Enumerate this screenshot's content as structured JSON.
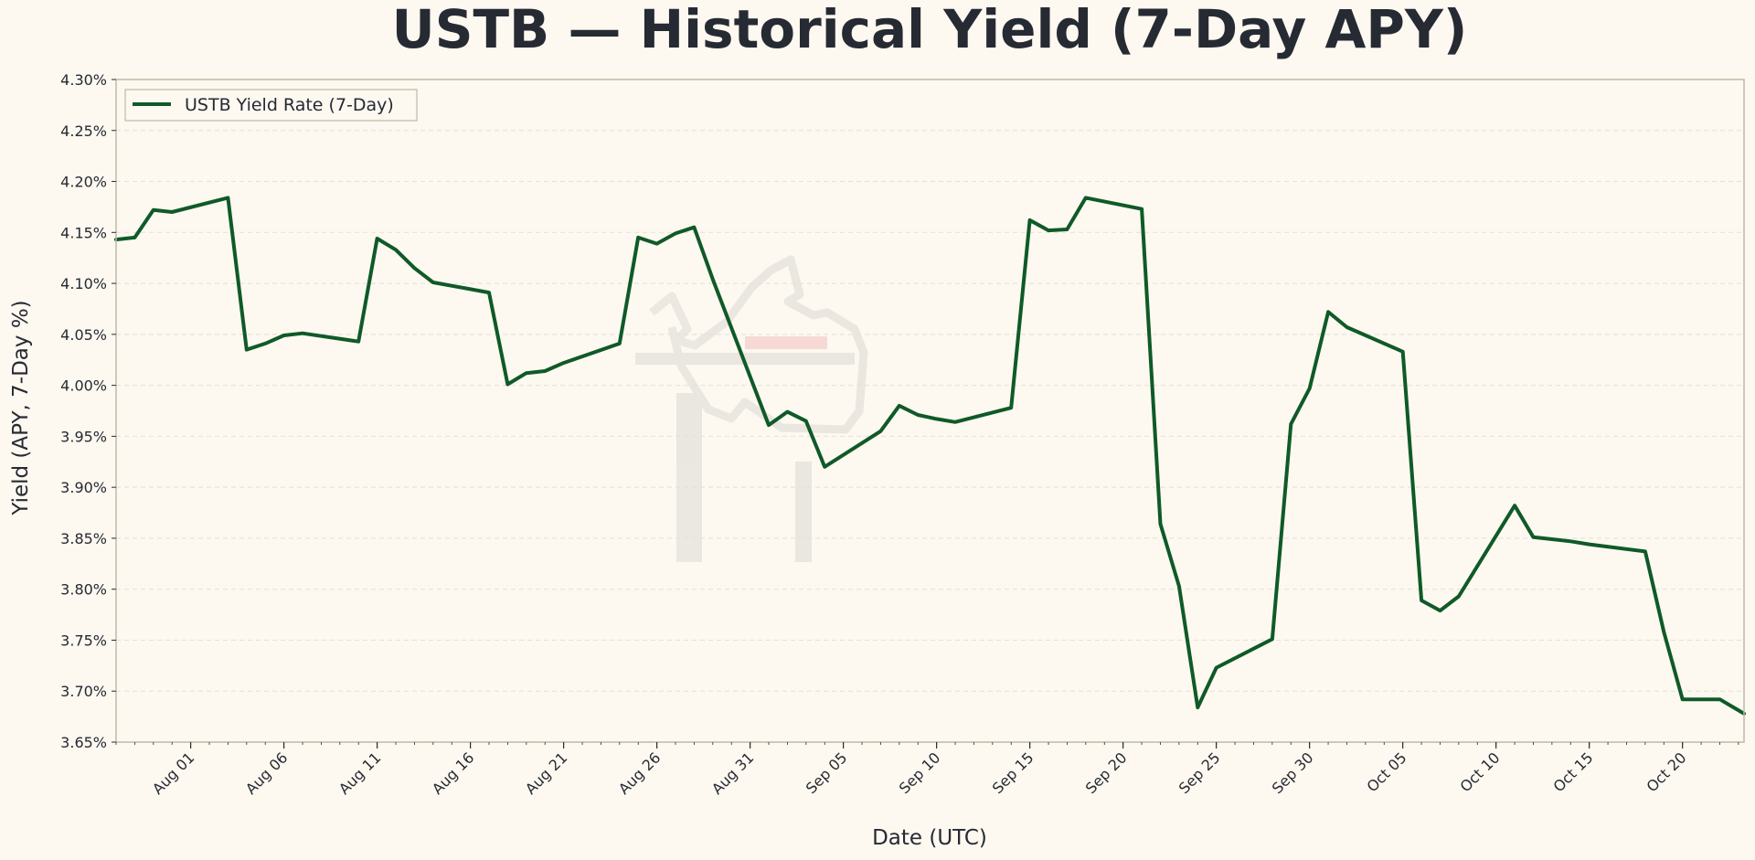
{
  "colors": {
    "background": "#fdf8f0",
    "plot_background": "#fdf8f0",
    "line": "#0f5a28",
    "grid": "#e6e0d6",
    "frame": "#b9bda4",
    "text": "#262a33",
    "watermark": "#e9e5df",
    "watermark_accent": "#f6d6d2"
  },
  "chart_data": {
    "type": "line",
    "title": "USTB — Historical Yield (7-Day APY)",
    "xlabel": "Date (UTC)",
    "ylabel": "Yield (APY, 7-Day %)",
    "ylim": [
      3.65,
      4.3
    ],
    "yticks": [
      3.65,
      3.7,
      3.75,
      3.8,
      3.85,
      3.9,
      3.95,
      4.0,
      4.05,
      4.1,
      4.15,
      4.2,
      4.25,
      4.3
    ],
    "ytick_labels": [
      "3.65%",
      "3.70%",
      "3.75%",
      "3.80%",
      "3.85%",
      "3.90%",
      "3.95%",
      "4.00%",
      "4.05%",
      "4.10%",
      "4.15%",
      "4.20%",
      "4.25%",
      "4.30%"
    ],
    "xlim_day_offset": [
      -4,
      83.3
    ],
    "x_reference": "Aug 01 = day 0",
    "xticks_day_offset": [
      0,
      5,
      10,
      15,
      20,
      25,
      30,
      35,
      40,
      45,
      50,
      55,
      60,
      65,
      70,
      75,
      80
    ],
    "xtick_labels": [
      "Aug 01",
      "Aug 06",
      "Aug 11",
      "Aug 16",
      "Aug 21",
      "Aug 26",
      "Aug 31",
      "Sep 05",
      "Sep 10",
      "Sep 15",
      "Sep 20",
      "Sep 25",
      "Sep 30",
      "Oct 05",
      "Oct 10",
      "Oct 15",
      "Oct 20"
    ],
    "grid": true,
    "legend_position": "top-left",
    "series": [
      {
        "name": "USTB Yield Rate (7-Day)",
        "x_day_offset": [
          -4,
          -3,
          -2,
          -1,
          2,
          3,
          4,
          5,
          6,
          9,
          10,
          11,
          12,
          13,
          16,
          17,
          18,
          19,
          20,
          23,
          24,
          25,
          26,
          27,
          28,
          31,
          32,
          33,
          34,
          37,
          38,
          39,
          40,
          41,
          44,
          45,
          46,
          47,
          48,
          51,
          52,
          53,
          54,
          55,
          58,
          59,
          60,
          61,
          62,
          65,
          66,
          67,
          68,
          71,
          72,
          73,
          74,
          75,
          78,
          79,
          80,
          81,
          82,
          83.3
        ],
        "values": [
          4.143,
          4.145,
          4.172,
          4.17,
          4.184,
          4.035,
          4.041,
          4.049,
          4.051,
          4.043,
          4.144,
          4.133,
          4.115,
          4.101,
          4.091,
          4.001,
          4.012,
          4.014,
          4.022,
          4.041,
          4.145,
          4.139,
          4.149,
          4.155,
          4.104,
          3.961,
          3.974,
          3.965,
          3.92,
          3.955,
          3.98,
          3.971,
          3.967,
          3.964,
          3.978,
          4.162,
          4.152,
          4.153,
          4.184,
          4.173,
          3.864,
          3.803,
          3.684,
          3.723,
          3.751,
          3.962,
          3.997,
          4.072,
          4.057,
          4.033,
          3.789,
          3.779,
          3.793,
          3.882,
          3.851,
          3.849,
          3.847,
          3.844,
          3.837,
          3.758,
          3.692,
          3.692,
          3.692,
          3.678
        ]
      }
    ]
  }
}
